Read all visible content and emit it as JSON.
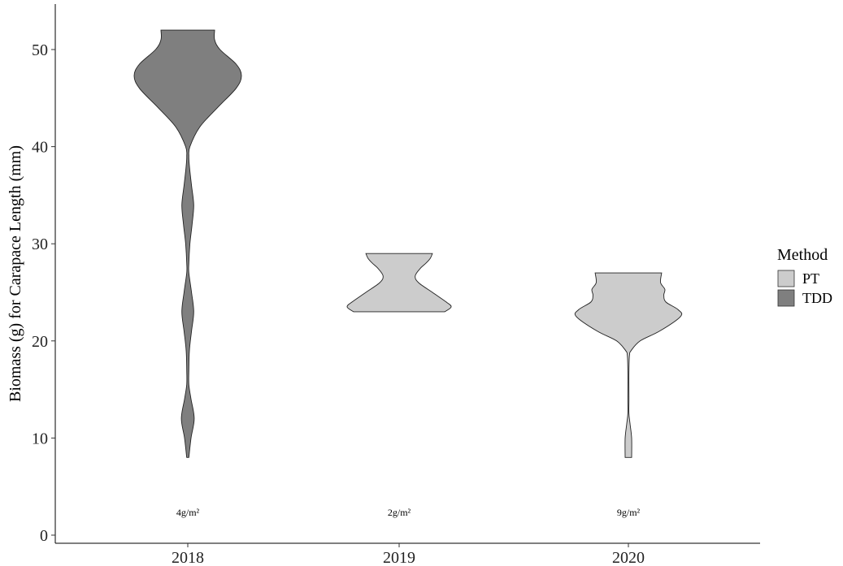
{
  "chart_data": {
    "type": "violin",
    "title": "",
    "xlabel": "",
    "ylabel": "Biomass (g) for Carapace Length (mm)",
    "ylim": [
      -1,
      54
    ],
    "y_ticks": [
      0,
      10,
      20,
      30,
      40,
      50
    ],
    "categories": [
      "2018",
      "2019",
      "2020"
    ],
    "grid": false,
    "legend": {
      "title": "Method",
      "position": "right",
      "entries": [
        {
          "label": "PT",
          "color": "#cccccc"
        },
        {
          "label": "TDD",
          "color": "#7f7f7f"
        }
      ]
    },
    "violins": [
      {
        "category": "2018",
        "method": "TDD",
        "color": "#7f7f7f",
        "y_min": 8,
        "y_max": 52,
        "profile": [
          [
            8,
            0.02
          ],
          [
            10,
            0.06
          ],
          [
            12,
            0.12
          ],
          [
            14,
            0.06
          ],
          [
            15.5,
            0.02
          ],
          [
            17,
            0.02
          ],
          [
            19,
            0.03
          ],
          [
            21,
            0.07
          ],
          [
            23,
            0.11
          ],
          [
            25,
            0.07
          ],
          [
            27,
            0.02
          ],
          [
            28,
            0.02
          ],
          [
            30,
            0.04
          ],
          [
            32,
            0.08
          ],
          [
            34,
            0.11
          ],
          [
            36,
            0.07
          ],
          [
            38,
            0.03
          ],
          [
            39,
            0.02
          ],
          [
            40,
            0.04
          ],
          [
            42,
            0.22
          ],
          [
            44,
            0.55
          ],
          [
            46,
            0.9
          ],
          [
            47.3,
            1.0
          ],
          [
            48.5,
            0.9
          ],
          [
            50,
            0.6
          ],
          [
            51,
            0.5
          ],
          [
            52,
            0.5
          ]
        ],
        "annotation": "4g/m²"
      },
      {
        "category": "2019",
        "method": "PT",
        "color": "#cccccc",
        "y_min": 23,
        "y_max": 29,
        "profile": [
          [
            23,
            0.85
          ],
          [
            23.5,
            0.97
          ],
          [
            24,
            0.88
          ],
          [
            25,
            0.62
          ],
          [
            26,
            0.36
          ],
          [
            26.7,
            0.3
          ],
          [
            27.5,
            0.4
          ],
          [
            28,
            0.5
          ],
          [
            28.5,
            0.58
          ],
          [
            29,
            0.62
          ]
        ],
        "annotation": "2g/m²"
      },
      {
        "category": "2020",
        "method": "PT",
        "color": "#cccccc",
        "y_min": 8,
        "y_max": 27,
        "profile": [
          [
            8,
            0.06
          ],
          [
            10,
            0.06
          ],
          [
            11.5,
            0.03
          ],
          [
            12.5,
            0.01
          ],
          [
            14,
            0.01
          ],
          [
            17,
            0.01
          ],
          [
            18.5,
            0.02
          ],
          [
            19,
            0.05
          ],
          [
            20,
            0.22
          ],
          [
            21,
            0.58
          ],
          [
            22.5,
            0.97
          ],
          [
            23.2,
            0.93
          ],
          [
            24,
            0.7
          ],
          [
            24.7,
            0.66
          ],
          [
            25.3,
            0.68
          ],
          [
            26,
            0.6
          ],
          [
            27,
            0.62
          ]
        ],
        "annotation": "9g/m²"
      }
    ]
  }
}
